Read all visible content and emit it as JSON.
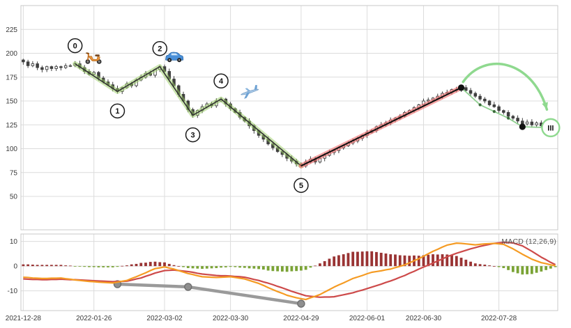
{
  "figure": {
    "bg": "#ffffff",
    "grid_color": "#dcdcdc",
    "border_color": "#c9c9c9",
    "tick_color": "#3a3a3a"
  },
  "chart_data": [
    {
      "type": "candlestick",
      "panel": "price",
      "ylim": [
        15,
        250
      ],
      "yticks": [
        50,
        75,
        100,
        125,
        150,
        175,
        200,
        225
      ],
      "xticks": [
        {
          "label": "2021-12-28",
          "bar": 0
        },
        {
          "label": "2022-01-26",
          "bar": 15
        },
        {
          "label": "2022-03-02",
          "bar": 30
        },
        {
          "label": "2022-03-30",
          "bar": 44
        },
        {
          "label": "2022-04-29",
          "bar": 59
        },
        {
          "label": "2022-06-01",
          "bar": 73
        },
        {
          "label": "2022-06-30",
          "bar": 85
        },
        {
          "label": "2022-07-28",
          "bar": 101
        }
      ],
      "closes": [
        191,
        187,
        189,
        185,
        183,
        186,
        184,
        186,
        185,
        187,
        187,
        189,
        185,
        181,
        178,
        180,
        174,
        170,
        167,
        163,
        160,
        164,
        168,
        166,
        172,
        175,
        179,
        177,
        183,
        186,
        181,
        173,
        166,
        157,
        150,
        141,
        135,
        140,
        144,
        147,
        145,
        150,
        152,
        147,
        142,
        138,
        133,
        129,
        124,
        119,
        114,
        110,
        105,
        101,
        97,
        94,
        90,
        87,
        84,
        82,
        86,
        89,
        86,
        90,
        93,
        96,
        98,
        101,
        103,
        106,
        108,
        111,
        114,
        117,
        119,
        123,
        125,
        127,
        130,
        132,
        134,
        138,
        140,
        143,
        146,
        150,
        151,
        153,
        155,
        158,
        159,
        162,
        162,
        164,
        161,
        158,
        155,
        152,
        150,
        146,
        144,
        140,
        138,
        134,
        132,
        129,
        126,
        128,
        125,
        127,
        124,
        126,
        124,
        125
      ],
      "candle_up_color": "#ffffff",
      "candle_down_color": "#3f3f3f",
      "candle_edge_color": "#3f3f3f",
      "overlays": {
        "elliott_waves": {
          "labels": [
            "0",
            "1",
            "2",
            "3",
            "4",
            "5"
          ],
          "points": [
            [
              11,
              189
            ],
            [
              20,
              160
            ],
            [
              29,
              186
            ],
            [
              36,
              135
            ],
            [
              42,
              152
            ],
            [
              59,
              82
            ]
          ],
          "halo_color": "rgba(154,205,100,0.5)",
          "line_color": "#333333"
        },
        "impulse_line": {
          "points": [
            [
              59,
              82
            ],
            [
              93,
              164
            ]
          ],
          "halo_color": "rgba(242,108,108,0.6)",
          "line_color": "#111111"
        },
        "forecast_line": {
          "points": [
            [
              93,
              164
            ],
            [
              97,
              146
            ],
            [
              100,
              139
            ],
            [
              103,
              132
            ],
            [
              106,
              123
            ],
            [
              112,
              122
            ]
          ],
          "color": "#8fcf8f",
          "dot_color": "#3a6b3a"
        },
        "marker_dots": [
          [
            93,
            164
          ],
          [
            106,
            123
          ]
        ],
        "arrow": {
          "color": "#8fd98f",
          "start": [
            93.4,
            170
          ],
          "c1": [
            98,
            202
          ],
          "c2": [
            108,
            194
          ],
          "end": [
            111.2,
            141
          ]
        },
        "target_badge": {
          "label": "III",
          "bar": 112,
          "price": 122,
          "ring_color": "#8fd98f",
          "text_color": "#111111"
        },
        "icons": [
          {
            "name": "scooter-icon",
            "emoji": "🛵",
            "bar": 15,
            "price": 196
          },
          {
            "name": "car-icon",
            "emoji": "🚙",
            "bar": 32,
            "price": 196
          },
          {
            "name": "plane-icon",
            "emoji": "✈️",
            "bar": 48,
            "price": 160
          }
        ]
      }
    },
    {
      "type": "macd",
      "label": "MACD (12,26,9)",
      "ylim": [
        -18,
        13
      ],
      "yticks": [
        10,
        0,
        -10
      ],
      "macd_color": "#f59b23",
      "signal_color": "#cd4a4a",
      "hist_pos_color": "#993333",
      "hist_neg_color": "#7aa335",
      "macd": [
        -4.5,
        -4.6,
        -4.8,
        -4.9,
        -5.0,
        -5.0,
        -4.9,
        -4.9,
        -4.8,
        -5.1,
        -5.3,
        -5.6,
        -5.8,
        -6.0,
        -6.2,
        -6.3,
        -6.5,
        -6.6,
        -6.7,
        -6.8,
        -6.5,
        -6.1,
        -5.8,
        -5.0,
        -4.3,
        -3.5,
        -2.7,
        -1.8,
        -1.0,
        -0.7,
        -0.3,
        -0.8,
        -1.2,
        -1.8,
        -2.4,
        -3.0,
        -3.4,
        -3.9,
        -4.3,
        -4.4,
        -4.5,
        -4.6,
        -4.5,
        -4.4,
        -4.3,
        -4.6,
        -4.9,
        -5.2,
        -5.8,
        -6.4,
        -7.0,
        -7.8,
        -8.7,
        -9.5,
        -10.3,
        -11.0,
        -11.8,
        -12.3,
        -12.8,
        -13.2,
        -13.5,
        -12.8,
        -12.2,
        -11.5,
        -10.5,
        -9.5,
        -8.5,
        -7.6,
        -6.8,
        -5.9,
        -5.0,
        -4.4,
        -3.8,
        -3.1,
        -2.5,
        -2.2,
        -1.9,
        -1.5,
        -1.2,
        -0.6,
        -0.1,
        0.5,
        1.3,
        2.2,
        3.0,
        4.0,
        5.0,
        6.0,
        6.8,
        7.7,
        8.5,
        8.9,
        9.3,
        9.2,
        9.0,
        8.8,
        8.6,
        8.8,
        9.0,
        9.1,
        9.2,
        9.0,
        8.8,
        7.9,
        7.0,
        5.9,
        4.8,
        3.8,
        2.8,
        2.1,
        1.4,
        1.0,
        0.5,
        0.2
      ],
      "signal": [
        -5.2,
        -5.3,
        -5.4,
        -5.4,
        -5.5,
        -5.5,
        -5.4,
        -5.4,
        -5.3,
        -5.4,
        -5.5,
        -5.5,
        -5.6,
        -5.7,
        -5.8,
        -5.9,
        -6.0,
        -6.1,
        -6.2,
        -6.3,
        -6.2,
        -6.2,
        -6.1,
        -5.7,
        -5.2,
        -4.8,
        -4.1,
        -3.5,
        -2.8,
        -2.3,
        -1.8,
        -1.7,
        -1.6,
        -1.8,
        -2.0,
        -2.2,
        -2.5,
        -2.9,
        -3.2,
        -3.4,
        -3.6,
        -3.8,
        -3.9,
        -3.9,
        -4.0,
        -4.2,
        -4.3,
        -4.5,
        -4.9,
        -5.4,
        -5.8,
        -6.4,
        -6.9,
        -7.5,
        -8.2,
        -8.8,
        -9.5,
        -10.2,
        -10.8,
        -11.4,
        -12.0,
        -12.2,
        -12.4,
        -12.6,
        -12.5,
        -12.5,
        -12.4,
        -12.0,
        -11.6,
        -11.2,
        -10.8,
        -10.2,
        -9.7,
        -9.1,
        -8.5,
        -7.9,
        -7.3,
        -6.6,
        -6.0,
        -5.3,
        -4.5,
        -3.8,
        -2.9,
        -2.1,
        -1.2,
        -0.4,
        0.4,
        1.2,
        2.1,
        2.9,
        3.8,
        4.5,
        5.2,
        5.8,
        6.4,
        7.0,
        7.5,
        8.0,
        8.4,
        8.8,
        9.2,
        9.4,
        9.6,
        9.5,
        9.4,
        8.8,
        8.2,
        7.1,
        6.0,
        4.8,
        3.6,
        2.6,
        1.5,
        0.6
      ],
      "divergence": {
        "points": [
          [
            20,
            -7.3
          ],
          [
            35,
            -8.4
          ],
          [
            59,
            -15.2
          ]
        ],
        "line_color": "#9a9a9a",
        "dot_color": "#8f8f8f",
        "dot_edge_color": "#6e6e6e"
      }
    }
  ]
}
